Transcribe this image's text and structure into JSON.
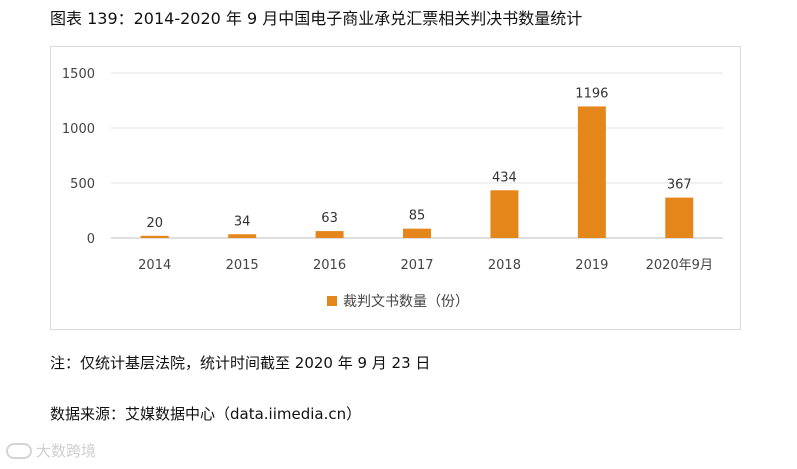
{
  "caption": "图表 139：2014-2020 年 9 月中国电子商业承兑汇票相关判决书数量统计",
  "note": "注：仅统计基层法院，统计时间截至 2020 年 9 月 23 日",
  "source": "数据来源：艾媒数据中心（data.iimedia.cn）",
  "watermark": "大数跨境",
  "chart_data": {
    "type": "bar",
    "title": "",
    "categories": [
      "2014",
      "2015",
      "2016",
      "2017",
      "2018",
      "2019",
      "2020年9月"
    ],
    "series": [
      {
        "name": "裁判文书数量（份）",
        "values": [
          20,
          34,
          63,
          85,
          434,
          1196,
          367
        ],
        "color": "#e5861a"
      }
    ],
    "ylim": [
      0,
      1500
    ],
    "yticks": [
      0,
      500,
      1000,
      1500
    ],
    "grid": true,
    "legend": "bottom-center",
    "xlabel": "",
    "ylabel": ""
  }
}
